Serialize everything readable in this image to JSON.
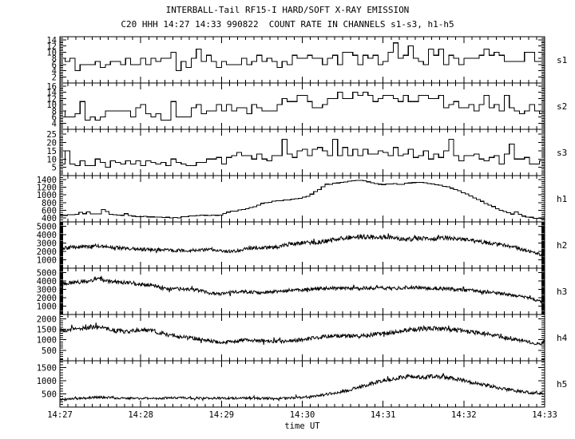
{
  "chart_data": {
    "type": "line",
    "title": "INTERBALL-Tail RF15-I HARD/SOFT X-RAY EMISSION",
    "subtitle": "C20 HHH 14:27 14:33 990822  COUNT RATE IN CHANNELS s1-s3, h1-h5",
    "x_axis": {
      "label": "time UT",
      "tick_labels": [
        "14:27",
        "14:28",
        "14:29",
        "14:30",
        "14:31",
        "14:32",
        "14:33"
      ],
      "range_minutes": [
        0,
        6
      ],
      "minor_per_major": 10
    },
    "foreground_color": "#000000",
    "background_color": "#ffffff",
    "panels": [
      {
        "label": "s1",
        "style": "hist",
        "ymin": 0,
        "ymax": 15,
        "yticks": [
          2,
          4,
          6,
          8,
          10,
          12,
          14
        ],
        "yminor": 0.5,
        "bins": 96,
        "noise": 2.4,
        "spike_p": 0.05,
        "spike_add": 3.5,
        "clamp": [
          2,
          14.5
        ],
        "round": true,
        "seed": 11,
        "keypoints": [
          [
            0,
            8
          ],
          [
            0.2,
            5.5
          ],
          [
            0.5,
            6.5
          ],
          [
            1,
            7
          ],
          [
            1.5,
            6.5
          ],
          [
            2,
            7
          ],
          [
            2.5,
            7.5
          ],
          [
            3,
            7.5
          ],
          [
            3.5,
            7.5
          ],
          [
            4,
            8
          ],
          [
            4.5,
            8.5
          ],
          [
            5,
            8.5
          ],
          [
            5.5,
            9
          ],
          [
            6,
            8.5
          ]
        ]
      },
      {
        "label": "s2",
        "style": "hist",
        "ymin": 2,
        "ymax": 17,
        "yticks": [
          4,
          6,
          8,
          10,
          12,
          14,
          16
        ],
        "yminor": 0.5,
        "bins": 96,
        "noise": 2.3,
        "spike_p": 0.05,
        "spike_add": 3,
        "clamp": [
          4,
          16.5
        ],
        "round": true,
        "seed": 22,
        "keypoints": [
          [
            0,
            7
          ],
          [
            0.5,
            7
          ],
          [
            1,
            7.5
          ],
          [
            1.5,
            7.5
          ],
          [
            2,
            8.5
          ],
          [
            2.5,
            9.5
          ],
          [
            3,
            11
          ],
          [
            3.5,
            12
          ],
          [
            4,
            12
          ],
          [
            4.5,
            11.5
          ],
          [
            5,
            10.5
          ],
          [
            5.5,
            9.5
          ],
          [
            6,
            8.5
          ]
        ]
      },
      {
        "label": "s3",
        "style": "hist",
        "ymin": 0,
        "ymax": 28,
        "yticks": [
          5,
          10,
          15,
          20,
          25
        ],
        "yminor": 1,
        "bins": 96,
        "noise": 3,
        "spike_p": 0.05,
        "spike_add": 7,
        "clamp": [
          3,
          27.5
        ],
        "round": true,
        "seed": 33,
        "keypoints": [
          [
            0,
            7
          ],
          [
            0.4,
            7.5
          ],
          [
            0.8,
            7
          ],
          [
            1.2,
            7.5
          ],
          [
            1.6,
            8
          ],
          [
            2,
            9
          ],
          [
            2.4,
            11
          ],
          [
            2.8,
            13
          ],
          [
            3.2,
            14
          ],
          [
            3.6,
            14.5
          ],
          [
            4,
            14
          ],
          [
            4.4,
            13.5
          ],
          [
            4.8,
            12.5
          ],
          [
            5.2,
            11
          ],
          [
            5.6,
            10
          ],
          [
            6,
            9
          ]
        ]
      },
      {
        "label": "h1",
        "style": "hist",
        "ymin": 300,
        "ymax": 1500,
        "yticks": [
          400,
          600,
          800,
          1000,
          1200,
          1400
        ],
        "yminor": 50,
        "bins": 128,
        "noise": 10,
        "spike_p": 0.02,
        "spike_add": 50,
        "clamp": [
          320,
          1480
        ],
        "round": false,
        "seed": 44,
        "keypoints": [
          [
            0,
            470
          ],
          [
            0.25,
            500
          ],
          [
            0.5,
            510
          ],
          [
            0.55,
            640
          ],
          [
            0.62,
            500
          ],
          [
            0.9,
            450
          ],
          [
            1.2,
            420
          ],
          [
            1.45,
            405
          ],
          [
            1.6,
            450
          ],
          [
            1.8,
            470
          ],
          [
            2,
            480
          ],
          [
            2.1,
            560
          ],
          [
            2.25,
            610
          ],
          [
            2.4,
            680
          ],
          [
            2.5,
            780
          ],
          [
            2.65,
            830
          ],
          [
            2.8,
            870
          ],
          [
            2.95,
            900
          ],
          [
            3.05,
            940
          ],
          [
            3.15,
            1060
          ],
          [
            3.3,
            1270
          ],
          [
            3.45,
            1310
          ],
          [
            3.6,
            1350
          ],
          [
            3.7,
            1380
          ],
          [
            3.8,
            1355
          ],
          [
            3.9,
            1300
          ],
          [
            4,
            1275
          ],
          [
            4.1,
            1290
          ],
          [
            4.25,
            1280
          ],
          [
            4.4,
            1330
          ],
          [
            4.55,
            1300
          ],
          [
            4.7,
            1250
          ],
          [
            4.85,
            1180
          ],
          [
            5,
            1060
          ],
          [
            5.1,
            960
          ],
          [
            5.2,
            860
          ],
          [
            5.3,
            760
          ],
          [
            5.4,
            660
          ],
          [
            5.5,
            575
          ],
          [
            5.6,
            510
          ],
          [
            5.65,
            570
          ],
          [
            5.72,
            450
          ],
          [
            5.85,
            405
          ],
          [
            6,
            385
          ]
        ]
      },
      {
        "label": "h2",
        "style": "line",
        "ymin": 0,
        "ymax": 5500,
        "yticks": [
          1000,
          2000,
          3000,
          4000,
          5000
        ],
        "yminor": 100,
        "npts": 900,
        "noise": 215,
        "noise_ref": 2500,
        "spike_p": 0.03,
        "clamp": [
          150,
          5350
        ],
        "seed": 55,
        "keypoints": [
          [
            0,
            2400
          ],
          [
            0.2,
            2500
          ],
          [
            0.45,
            2650
          ],
          [
            0.6,
            2500
          ],
          [
            0.8,
            2350
          ],
          [
            1,
            2250
          ],
          [
            1.2,
            2200
          ],
          [
            1.4,
            2150
          ],
          [
            1.55,
            2050
          ],
          [
            1.7,
            2150
          ],
          [
            1.9,
            2250
          ],
          [
            2.05,
            1980
          ],
          [
            2.2,
            2100
          ],
          [
            2.35,
            2400
          ],
          [
            2.55,
            2450
          ],
          [
            2.7,
            2500
          ],
          [
            2.85,
            2900
          ],
          [
            3,
            3000
          ],
          [
            3.15,
            3050
          ],
          [
            3.3,
            3200
          ],
          [
            3.45,
            3500
          ],
          [
            3.6,
            3680
          ],
          [
            3.75,
            3720
          ],
          [
            3.9,
            3650
          ],
          [
            4.05,
            3680
          ],
          [
            4.2,
            3500
          ],
          [
            4.35,
            3420
          ],
          [
            4.5,
            3550
          ],
          [
            4.65,
            3480
          ],
          [
            4.78,
            3620
          ],
          [
            4.9,
            3480
          ],
          [
            5.05,
            3350
          ],
          [
            5.2,
            3150
          ],
          [
            5.35,
            2950
          ],
          [
            5.5,
            2700
          ],
          [
            5.65,
            2400
          ],
          [
            5.8,
            2050
          ],
          [
            5.95,
            1600
          ],
          [
            6,
            1450
          ]
        ]
      },
      {
        "label": "h3",
        "style": "line",
        "ymin": 0,
        "ymax": 5500,
        "yticks": [
          1000,
          2000,
          3000,
          4000,
          5000
        ],
        "yminor": 100,
        "npts": 900,
        "noise": 205,
        "noise_ref": 3000,
        "spike_p": 0.03,
        "clamp": [
          150,
          5350
        ],
        "seed": 66,
        "keypoints": [
          [
            0,
            3600
          ],
          [
            0.15,
            3750
          ],
          [
            0.3,
            3950
          ],
          [
            0.45,
            4200
          ],
          [
            0.55,
            4050
          ],
          [
            0.7,
            3900
          ],
          [
            0.85,
            3750
          ],
          [
            1,
            3550
          ],
          [
            1.15,
            3500
          ],
          [
            1.25,
            3150
          ],
          [
            1.4,
            3050
          ],
          [
            1.55,
            3000
          ],
          [
            1.7,
            2900
          ],
          [
            1.85,
            2550
          ],
          [
            2,
            2450
          ],
          [
            2.15,
            2650
          ],
          [
            2.3,
            2700
          ],
          [
            2.5,
            2600
          ],
          [
            2.7,
            2750
          ],
          [
            2.9,
            2900
          ],
          [
            3.1,
            3000
          ],
          [
            3.3,
            3100
          ],
          [
            3.5,
            3150
          ],
          [
            3.7,
            3100
          ],
          [
            3.9,
            3150
          ],
          [
            4.1,
            3100
          ],
          [
            4.3,
            3200
          ],
          [
            4.5,
            3150
          ],
          [
            4.7,
            3080
          ],
          [
            4.9,
            2980
          ],
          [
            5.1,
            2850
          ],
          [
            5.3,
            2650
          ],
          [
            5.5,
            2450
          ],
          [
            5.7,
            2150
          ],
          [
            5.85,
            1850
          ],
          [
            6,
            1400
          ]
        ]
      },
      {
        "label": "h4",
        "style": "line",
        "ymin": 0,
        "ymax": 2200,
        "yticks": [
          500,
          1000,
          1500,
          2000
        ],
        "yminor": 100,
        "npts": 900,
        "noise": 95,
        "noise_ref": 1200,
        "spike_p": 0.03,
        "clamp": [
          80,
          2150
        ],
        "seed": 77,
        "keypoints": [
          [
            0,
            1450
          ],
          [
            0.2,
            1520
          ],
          [
            0.4,
            1620
          ],
          [
            0.55,
            1560
          ],
          [
            0.7,
            1420
          ],
          [
            0.85,
            1380
          ],
          [
            1,
            1480
          ],
          [
            1.15,
            1420
          ],
          [
            1.3,
            1260
          ],
          [
            1.5,
            1120
          ],
          [
            1.7,
            1060
          ],
          [
            1.85,
            960
          ],
          [
            2,
            870
          ],
          [
            2.15,
            920
          ],
          [
            2.3,
            1010
          ],
          [
            2.45,
            960
          ],
          [
            2.6,
            920
          ],
          [
            2.75,
            930
          ],
          [
            2.9,
            960
          ],
          [
            3.1,
            1060
          ],
          [
            3.3,
            1160
          ],
          [
            3.5,
            1200
          ],
          [
            3.7,
            1160
          ],
          [
            3.9,
            1260
          ],
          [
            4.1,
            1320
          ],
          [
            4.3,
            1460
          ],
          [
            4.5,
            1530
          ],
          [
            4.7,
            1520
          ],
          [
            4.9,
            1460
          ],
          [
            5.1,
            1360
          ],
          [
            5.3,
            1260
          ],
          [
            5.5,
            1110
          ],
          [
            5.7,
            960
          ],
          [
            5.85,
            860
          ],
          [
            5.95,
            810
          ],
          [
            6,
            920
          ]
        ]
      },
      {
        "label": "h5",
        "style": "line",
        "ymin": 0,
        "ymax": 1750,
        "yticks": [
          500,
          1000,
          1500
        ],
        "yminor": 100,
        "npts": 900,
        "noise": 52,
        "noise_ref": 500,
        "spike_p": 0.03,
        "clamp": [
          80,
          1700
        ],
        "seed": 88,
        "keypoints": [
          [
            0,
            280
          ],
          [
            0.3,
            340
          ],
          [
            0.5,
            370
          ],
          [
            0.7,
            340
          ],
          [
            1,
            330
          ],
          [
            1.3,
            340
          ],
          [
            1.6,
            350
          ],
          [
            1.9,
            330
          ],
          [
            2.2,
            340
          ],
          [
            2.5,
            330
          ],
          [
            2.8,
            340
          ],
          [
            3,
            370
          ],
          [
            3.2,
            430
          ],
          [
            3.4,
            530
          ],
          [
            3.6,
            660
          ],
          [
            3.8,
            830
          ],
          [
            4,
            1010
          ],
          [
            4.2,
            1110
          ],
          [
            4.35,
            1160
          ],
          [
            4.5,
            1140
          ],
          [
            4.65,
            1160
          ],
          [
            4.8,
            1110
          ],
          [
            5,
            1010
          ],
          [
            5.15,
            910
          ],
          [
            5.3,
            810
          ],
          [
            5.45,
            710
          ],
          [
            5.6,
            630
          ],
          [
            5.75,
            570
          ],
          [
            5.9,
            530
          ],
          [
            6,
            505
          ]
        ]
      }
    ]
  }
}
